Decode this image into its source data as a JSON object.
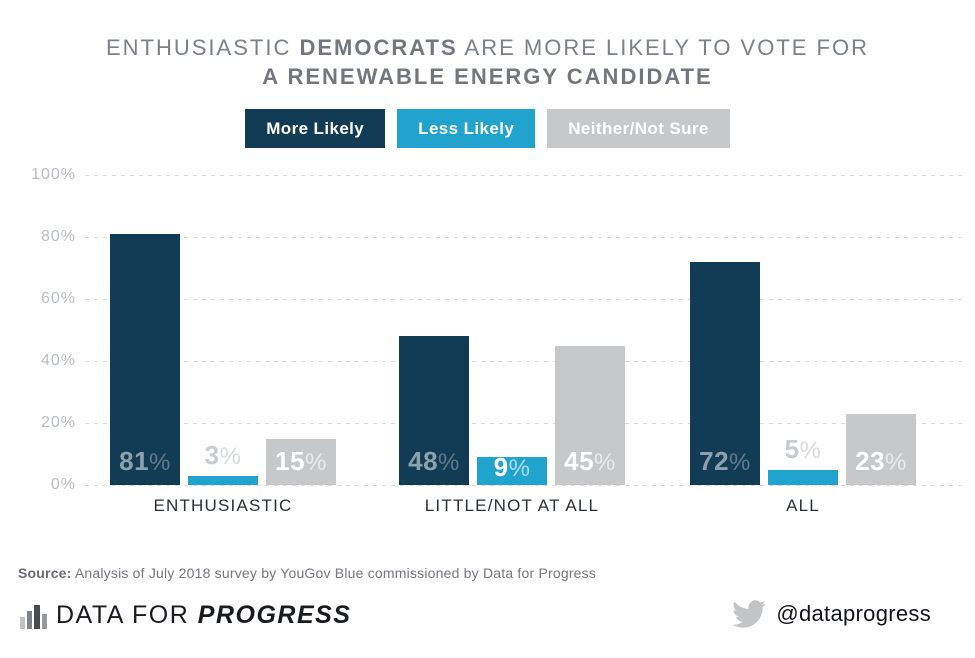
{
  "title": {
    "line1_prefix": "ENTHUSIASTIC",
    "line1_bold": "DEMOCRATS",
    "line1_suffix": "ARE MORE LIKELY TO VOTE FOR",
    "line2": "A RENEWABLE ENERGY CANDIDATE"
  },
  "chart_data": {
    "type": "bar",
    "categories": [
      "ENTHUSIASTIC",
      "LITTLE/NOT AT ALL",
      "ALL"
    ],
    "series": [
      {
        "name": "More Likely",
        "color": "#123C55",
        "values": [
          81,
          48,
          72
        ]
      },
      {
        "name": "Less Likely",
        "color": "#20A3CC",
        "values": [
          3,
          9,
          5
        ]
      },
      {
        "name": "Neither/Not Sure",
        "color": "#C7C8CA",
        "values": [
          15,
          45,
          23
        ]
      }
    ],
    "value_suffix": "%",
    "yticks": [
      0,
      20,
      40,
      60,
      80,
      100
    ],
    "ytick_suffix": "%",
    "ylim": [
      0,
      100
    ],
    "grid": "horizontal dashed",
    "legend_position": "top center"
  },
  "source": {
    "label": "Source:",
    "text": "Analysis of July 2018 survey by YouGov Blue commissioned by Data for Progress"
  },
  "footer": {
    "brand_regular": "DATA FOR",
    "brand_bold": "PROGRESS",
    "twitter_handle": "@dataprogress"
  },
  "colors": {
    "navy": "#123C55",
    "cyan": "#20A3CC",
    "gray": "#C7C8CA",
    "title_text": "#7C8187",
    "axis_text": "#B9BDC2",
    "category_text": "#2C3035",
    "gridline": "#D9DBDE",
    "source_text": "#75787D",
    "twitter_icon": "#C2C4C6"
  }
}
